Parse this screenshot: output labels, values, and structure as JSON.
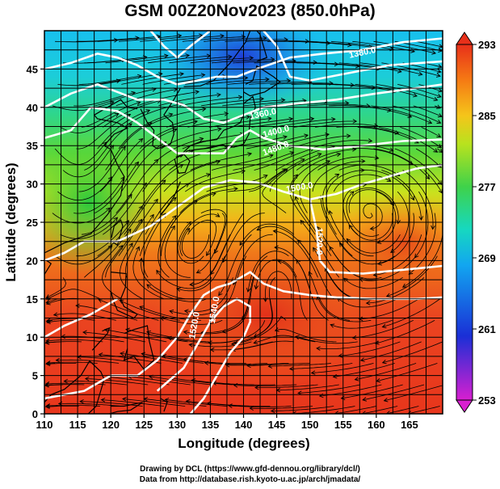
{
  "title": "GSM 00Z20Nov2023 (850.0hPa)",
  "credit_line1": "Drawing by DCL (https://www.gfd-dennou.org/library/dcl/)",
  "credit_line2": "Data from http://database.rish.kyoto-u.ac.jp/arch/jmadata/",
  "map": {
    "x_axis_label": "Longitude (degrees)",
    "y_axis_label": "Latitude  (degrees)",
    "lon_range": [
      110,
      170
    ],
    "lat_range": [
      0,
      50
    ],
    "lon_ticks": [
      "110",
      "115",
      "120",
      "125",
      "130",
      "135",
      "140",
      "145",
      "150",
      "155",
      "160",
      "165"
    ],
    "lat_ticks": [
      "0",
      "5",
      "10",
      "15",
      "20",
      "25",
      "30",
      "35",
      "40",
      "45"
    ],
    "grid": true,
    "streamlines": true
  },
  "colorbar": {
    "range": [
      253,
      293
    ],
    "tick_labels": [
      "293",
      "285",
      "277",
      "269",
      "261",
      "253"
    ],
    "colors": [
      "#d81fd0",
      "#1a2fd6",
      "#12a6f0",
      "#16d8c0",
      "#3fd24a",
      "#b8e21e",
      "#f5c51a",
      "#f57a14",
      "#e8301a"
    ]
  },
  "contour_labels": [
    "1380.0",
    "1360.0",
    "1400.0",
    "1480.0",
    "1500.0",
    "1520.0",
    "1540.0",
    "1520.0"
  ]
}
